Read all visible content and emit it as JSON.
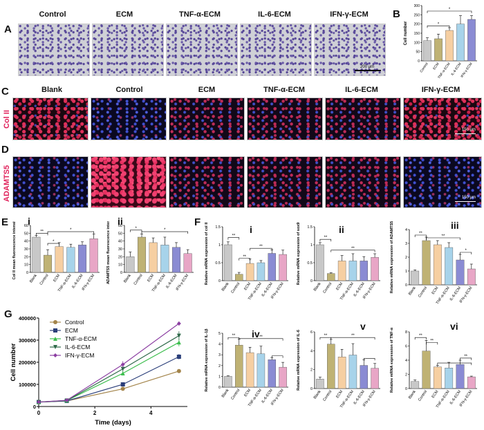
{
  "panel_letters": {
    "A": "A",
    "B": "B",
    "C": "C",
    "D": "D",
    "E": "E",
    "F": "F",
    "G": "G"
  },
  "row_a_labels": [
    "Control",
    "ECM",
    "TNF-α-ECM",
    "IL-6-ECM",
    "IFN-γ-ECM"
  ],
  "row_a_scale": "200 μm",
  "row_cd_labels": [
    "Blank",
    "Control",
    "ECM",
    "TNF-α-ECM",
    "IL-6-ECM",
    "IFN-γ-ECM"
  ],
  "row_c_side": "Col II",
  "row_d_side": "ADAMTS5",
  "row_cd_scale": "150 μm",
  "roman": {
    "Ei": "i",
    "Eii": "ii",
    "Fi": "i",
    "Fii": "ii",
    "Fiii": "iii",
    "Fiv": "iv",
    "Fv": "v",
    "Fvi": "vi"
  },
  "sig": {
    "one": "*",
    "two": "**"
  },
  "chart_data": [
    {
      "id": "B",
      "type": "bar",
      "categories": [
        "Control",
        "ECM",
        "TNF-α-ECM",
        "IL-6-ECM",
        "IFN-γ-ECM"
      ],
      "values": [
        110,
        120,
        165,
        200,
        225
      ],
      "errors": [
        15,
        25,
        15,
        45,
        20
      ],
      "ylabel": "Cell number",
      "ylim": [
        0,
        300
      ],
      "yticks": [
        0,
        50,
        100,
        150,
        200,
        250,
        300
      ],
      "colors": [
        "#c8c8c8",
        "#bfb274",
        "#f6cfa2",
        "#a7d3ea",
        "#8a8bd3"
      ]
    },
    {
      "id": "Ei",
      "type": "bar",
      "categories": [
        "Blank",
        "Control",
        "ECM",
        "TNF-α-ECM",
        "IL-6-ECM",
        "IFN-γ-ECM"
      ],
      "values": [
        45,
        22,
        33,
        32,
        35,
        43
      ],
      "errors": [
        2,
        7,
        5,
        4,
        4,
        6
      ],
      "ylabel": "Col II mean fluorescence intensity",
      "ylim": [
        0,
        60
      ],
      "yticks": [
        0,
        10,
        20,
        30,
        40,
        50,
        60
      ],
      "colors": [
        "#c8c8c8",
        "#bfb274",
        "#f6cfa2",
        "#a7d3ea",
        "#8a8bd3",
        "#e8a6c6"
      ]
    },
    {
      "id": "Eii",
      "type": "bar",
      "categories": [
        "Blank",
        "Control",
        "ECM",
        "TNF-α-ECM",
        "IL-6-ECM",
        "IFN-γ-ECM"
      ],
      "values": [
        20,
        45,
        38,
        35,
        32,
        24
      ],
      "errors": [
        6,
        4,
        6,
        10,
        6,
        5
      ],
      "ylabel": "ADAMTS5 mean fluorescence intensity",
      "ylim": [
        0,
        60
      ],
      "yticks": [
        0,
        10,
        20,
        30,
        40,
        50,
        60
      ],
      "colors": [
        "#c8c8c8",
        "#bfb274",
        "#f6cfa2",
        "#a7d3ea",
        "#8a8bd3",
        "#e8a6c6"
      ]
    },
    {
      "id": "Fi",
      "type": "bar",
      "categories": [
        "Blank",
        "Control",
        "ECM",
        "TNF-α-ECM",
        "IL-6-ECM",
        "IFN-γ-ECM"
      ],
      "values": [
        1.0,
        0.18,
        0.48,
        0.5,
        0.76,
        0.73
      ],
      "errors": [
        0.08,
        0.05,
        0.12,
        0.06,
        0.1,
        0.12
      ],
      "ylabel": "Relative mRNA expression of col II",
      "ylim": [
        0,
        1.5
      ],
      "yticks": [
        0,
        0.5,
        1.0,
        1.5
      ],
      "colors": [
        "#c8c8c8",
        "#bfb274",
        "#f6cfa2",
        "#a7d3ea",
        "#8a8bd3",
        "#e8a6c6"
      ]
    },
    {
      "id": "Fii",
      "type": "bar",
      "categories": [
        "Blank",
        "Control",
        "ECM",
        "TNF-α-ECM",
        "IL-6-ECM",
        "IFN-γ-ECM"
      ],
      "values": [
        1.0,
        0.2,
        0.55,
        0.55,
        0.55,
        0.65
      ],
      "errors": [
        0.06,
        0.02,
        0.15,
        0.2,
        0.12,
        0.1
      ],
      "ylabel": "Relative mRNA expression of sox9",
      "ylim": [
        0,
        1.5
      ],
      "yticks": [
        0,
        0.5,
        1.0,
        1.5
      ],
      "colors": [
        "#c8c8c8",
        "#bfb274",
        "#f6cfa2",
        "#a7d3ea",
        "#8a8bd3",
        "#e8a6c6"
      ]
    },
    {
      "id": "Fiii",
      "type": "bar",
      "categories": [
        "Blank",
        "Control",
        "ECM",
        "TNF-α-ECM",
        "IL-6-ECM",
        "IFN-γ-ECM"
      ],
      "values": [
        1.0,
        3.2,
        2.9,
        2.7,
        1.8,
        1.15
      ],
      "errors": [
        0.08,
        0.25,
        0.3,
        0.35,
        0.4,
        0.35
      ],
      "ylabel": "Relative mRNA expression of ADAMTS5",
      "ylim": [
        0,
        4
      ],
      "yticks": [
        0,
        1,
        2,
        3,
        4
      ],
      "colors": [
        "#c8c8c8",
        "#bfb274",
        "#f6cfa2",
        "#a7d3ea",
        "#8a8bd3",
        "#e8a6c6"
      ]
    },
    {
      "id": "Fiv",
      "type": "bar",
      "categories": [
        "Blank",
        "Control",
        "ECM",
        "TNF-α-ECM",
        "IL-6-ECM",
        "IFN-γ-ECM"
      ],
      "values": [
        1.0,
        3.9,
        3.2,
        3.1,
        2.55,
        1.85
      ],
      "errors": [
        0.05,
        0.55,
        0.5,
        0.7,
        0.2,
        0.45
      ],
      "ylabel": "Relative mRNA expression of IL-1β",
      "ylim": [
        0,
        5
      ],
      "yticks": [
        0,
        1,
        2,
        3,
        4,
        5
      ],
      "colors": [
        "#c8c8c8",
        "#bfb274",
        "#f6cfa2",
        "#a7d3ea",
        "#8a8bd3",
        "#e8a6c6"
      ]
    },
    {
      "id": "Fv",
      "type": "bar",
      "categories": [
        "Blank",
        "Control",
        "ECM",
        "TNF-α-ECM",
        "IL-6-ECM",
        "IFN-γ-ECM"
      ],
      "values": [
        1.0,
        4.7,
        3.35,
        3.55,
        2.45,
        2.15
      ],
      "errors": [
        0.2,
        0.5,
        0.8,
        1.2,
        0.6,
        0.5
      ],
      "ylabel": "Relative mRNA expression of IL-6",
      "ylim": [
        0,
        6
      ],
      "yticks": [
        0,
        2,
        4,
        6
      ],
      "colors": [
        "#c8c8c8",
        "#bfb274",
        "#f6cfa2",
        "#a7d3ea",
        "#8a8bd3",
        "#e8a6c6"
      ]
    },
    {
      "id": "Fvi",
      "type": "bar",
      "categories": [
        "Blank",
        "Control",
        "ECM",
        "TNF-α-ECM",
        "IL-6-ECM",
        "IFN-γ-ECM"
      ],
      "values": [
        1.0,
        5.3,
        3.05,
        2.9,
        3.4,
        1.65
      ],
      "errors": [
        0.2,
        1.5,
        0.2,
        0.8,
        0.6,
        0.1
      ],
      "ylabel": "Relative mRNA expression of TNF-α",
      "ylim": [
        0,
        8
      ],
      "yticks": [
        0,
        2,
        4,
        6,
        8
      ],
      "colors": [
        "#c8c8c8",
        "#bfb274",
        "#f6cfa2",
        "#a7d3ea",
        "#8a8bd3",
        "#e8a6c6"
      ]
    },
    {
      "id": "G",
      "type": "line",
      "x": [
        0,
        1,
        3,
        5
      ],
      "xlabel": "Time (days)",
      "ylabel": "Cell number",
      "xlim": [
        0,
        5.3
      ],
      "ylim": [
        0,
        400000
      ],
      "xticks": [
        0,
        2,
        4
      ],
      "yticks": [
        0,
        100000,
        200000,
        300000,
        400000
      ],
      "series": [
        {
          "name": "Control",
          "values": [
            20000,
            25000,
            80000,
            160000
          ],
          "errors": [
            1000,
            2000,
            5000,
            8000
          ],
          "color": "#a3844a",
          "marker": "circle"
        },
        {
          "name": "ECM",
          "values": [
            20000,
            25000,
            100000,
            225000
          ],
          "errors": [
            1000,
            2000,
            6000,
            12000
          ],
          "color": "#2b3f7a",
          "marker": "square"
        },
        {
          "name": "TNF-α-ECM",
          "values": [
            20000,
            27000,
            150000,
            290000
          ],
          "errors": [
            1000,
            2000,
            10000,
            18000
          ],
          "color": "#3dbe4e",
          "marker": "triangle"
        },
        {
          "name": "IL-6-ECM",
          "values": [
            20000,
            27000,
            170000,
            320000
          ],
          "errors": [
            1000,
            2000,
            12000,
            20000
          ],
          "color": "#2f6a4a",
          "marker": "triangle-down"
        },
        {
          "name": "IFN-γ-ECM",
          "values": [
            20000,
            28000,
            190000,
            375000
          ],
          "errors": [
            1000,
            2000,
            15000,
            10000
          ],
          "color": "#8c3fa2",
          "marker": "diamond"
        }
      ]
    }
  ]
}
